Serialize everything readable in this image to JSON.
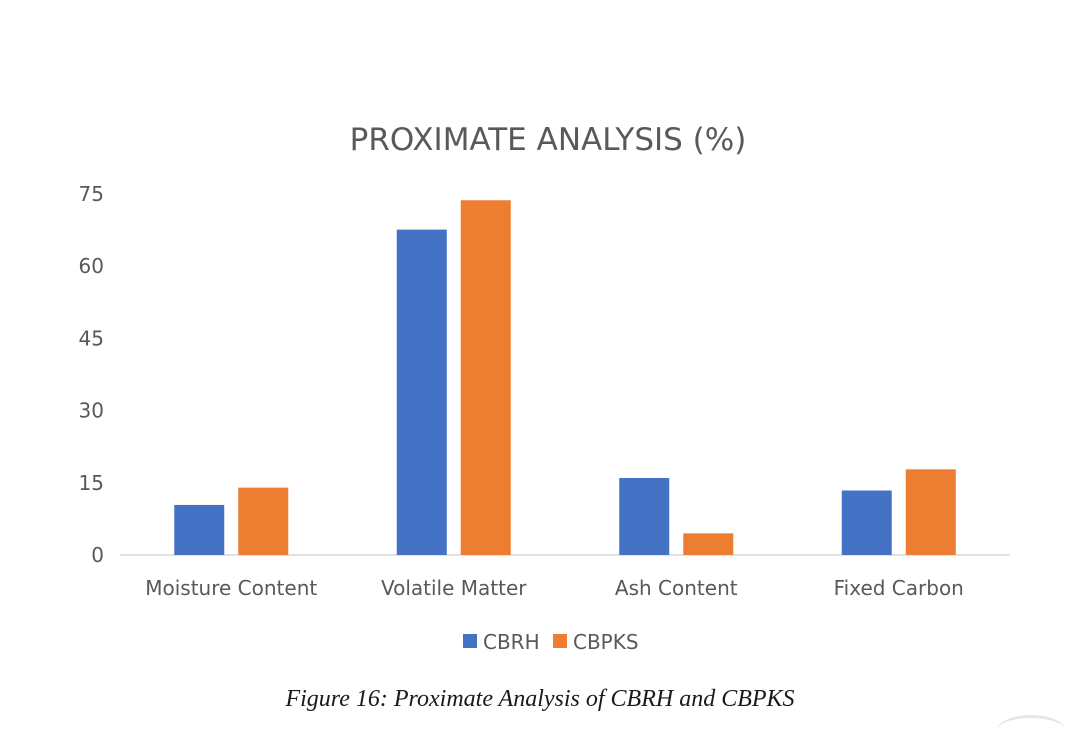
{
  "chart_data": {
    "type": "bar",
    "title": "PROXIMATE ANALYSIS (%)",
    "categories": [
      "Moisture Content",
      "Volatile Matter",
      "Ash Content",
      "Fixed Carbon"
    ],
    "series": [
      {
        "name": "CBRH",
        "color": "#4472C4",
        "values": [
          10.4,
          67.6,
          16.0,
          13.4
        ]
      },
      {
        "name": "CBPKS",
        "color": "#ED7D31",
        "values": [
          14.0,
          73.7,
          4.5,
          17.8
        ]
      }
    ],
    "yticks": [
      0,
      15,
      30,
      45,
      60,
      75
    ],
    "ylim": [
      0,
      75
    ],
    "xlabel": "",
    "ylabel": "",
    "grid": false,
    "legend": "bottom-center"
  },
  "caption": "Figure 16: Proximate Analysis of CBRH and CBPKS"
}
